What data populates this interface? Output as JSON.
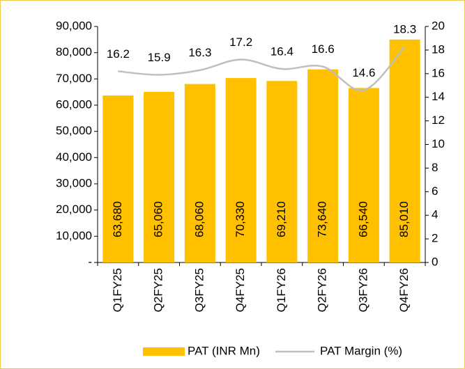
{
  "chart_data": {
    "type": "combo",
    "categories": [
      "Q1FY25",
      "Q2FY25",
      "Q3FY25",
      "Q4FY25",
      "Q1FY26",
      "Q2FY26",
      "Q3FY26",
      "Q4FY26"
    ],
    "series": [
      {
        "name": "PAT (INR Mn)",
        "type": "bar",
        "color": "#ffc000",
        "values": [
          63680,
          65060,
          68060,
          70330,
          69210,
          73640,
          66540,
          85010
        ],
        "value_labels": [
          "63,680",
          "65,060",
          "68,060",
          "70,330",
          "69,210",
          "73,640",
          "66,540",
          "85,010"
        ]
      },
      {
        "name": "PAT Margin (%)",
        "type": "line",
        "axis": "y2",
        "color": "#bfbfbf",
        "values": [
          16.2,
          15.9,
          16.3,
          17.2,
          16.4,
          16.6,
          14.6,
          18.3
        ]
      }
    ],
    "ylim": [
      0,
      90000
    ],
    "yticks": [
      {
        "value": 0,
        "label": "-"
      },
      {
        "value": 10000,
        "label": "10,000"
      },
      {
        "value": 20000,
        "label": "20,000"
      },
      {
        "value": 30000,
        "label": "30,000"
      },
      {
        "value": 40000,
        "label": "40,000"
      },
      {
        "value": 50000,
        "label": "50,000"
      },
      {
        "value": 60000,
        "label": "60,000"
      },
      {
        "value": 70000,
        "label": "70,000"
      },
      {
        "value": 80000,
        "label": "80,000"
      },
      {
        "value": 90000,
        "label": "90,000"
      }
    ],
    "y2lim": [
      0,
      20
    ],
    "y2ticks": [
      0,
      2,
      4,
      6,
      8,
      10,
      12,
      14,
      16,
      18,
      20
    ],
    "grid": false,
    "legend": "bottom"
  }
}
